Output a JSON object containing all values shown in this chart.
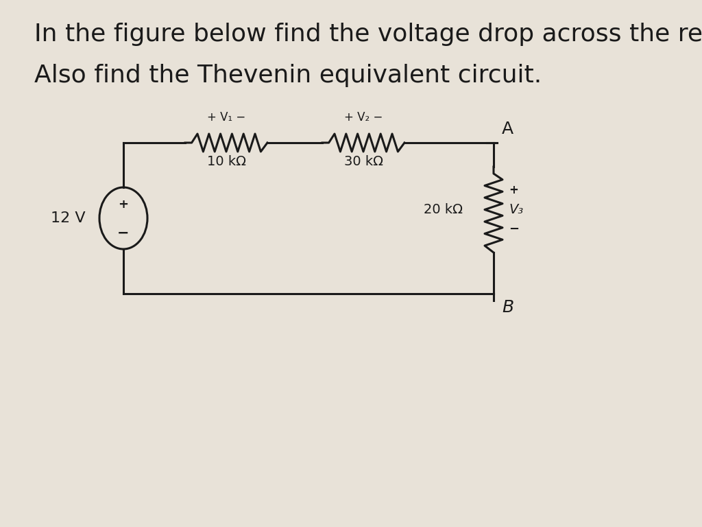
{
  "title_line1": "In the figure below find the voltage drop across the resis",
  "title_line2": "Also find the Thevenin equivalent circuit.",
  "background_color": "#e8e2d8",
  "text_color": "#1a1a1a",
  "title_fontsize": 26,
  "label_fontsize": 16,
  "small_fontsize": 14,
  "circuit": {
    "source_label": "12 V",
    "r1_label": "10 kΩ",
    "r1_v": "+ V₁ −",
    "r2_label": "30 kΩ",
    "r2_v": "+ V₂ −",
    "r3_label": "20 kΩ",
    "r3_v": "V₃",
    "node_a": "A",
    "node_b": "B"
  }
}
